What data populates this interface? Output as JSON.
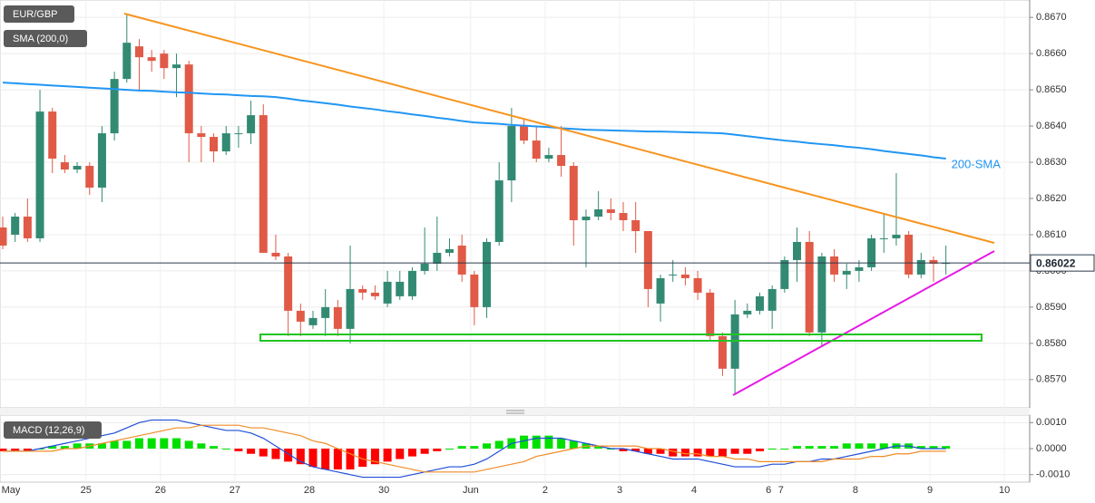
{
  "chart_data": [
    {
      "type": "candlestick",
      "title": "EUR/GBP",
      "categories": [
        "May",
        null,
        null,
        null,
        null,
        null,
        null,
        "25",
        null,
        null,
        null,
        null,
        null,
        "26",
        null,
        null,
        null,
        null,
        null,
        "27",
        null,
        null,
        null,
        null,
        null,
        "28",
        null,
        null,
        null,
        null,
        null,
        "30",
        null,
        null,
        null,
        null,
        null,
        null,
        "Jun",
        null,
        null,
        null,
        null,
        null,
        "2",
        null,
        null,
        null,
        null,
        null,
        "3",
        null,
        null,
        null,
        null,
        null,
        "4",
        null,
        null,
        null,
        null,
        null,
        "6",
        "7",
        null,
        null,
        null,
        null,
        null,
        "8",
        null,
        null,
        null,
        null,
        null,
        "9",
        null,
        null,
        null,
        null,
        null,
        "10"
      ],
      "open": [
        0.8612,
        0.861,
        0.8615,
        0.8609,
        0.8644,
        0.863,
        0.8628,
        0.8629,
        0.8623,
        0.8638,
        0.8653,
        0.8662,
        0.8659,
        0.866,
        0.8656,
        0.8657,
        0.8638,
        0.8637,
        0.8633,
        0.8638,
        0.8638,
        0.8643,
        0.8605,
        0.8604,
        0.8589,
        0.8585,
        0.8587,
        0.859,
        0.8584,
        0.8595,
        0.8594,
        0.8591,
        0.8593,
        0.8593,
        0.86,
        0.8602,
        0.8605,
        0.8607,
        0.8599,
        0.859,
        0.8608,
        0.8625,
        0.864,
        0.8636,
        0.8631,
        0.8632,
        0.8629,
        0.8614,
        0.8615,
        0.8617,
        0.8616,
        0.8614,
        0.8611,
        0.8591,
        0.8599,
        0.8599,
        0.8598,
        0.8594,
        0.8582,
        0.8573,
        0.8588,
        0.8589,
        0.8589,
        0.8595,
        0.8603,
        0.8608,
        0.8583,
        0.8604,
        0.8599,
        0.86,
        0.8601,
        0.8609,
        0.8609,
        0.861,
        0.8599,
        0.8603,
        0.8602,
        null,
        null,
        null,
        null,
        null
      ],
      "high": [
        0.8615,
        0.8616,
        0.862,
        0.865,
        0.8645,
        0.8632,
        0.863,
        0.863,
        0.864,
        0.8655,
        0.8671,
        0.8664,
        0.8661,
        0.8661,
        0.866,
        0.8658,
        0.864,
        0.8638,
        0.864,
        0.864,
        0.8647,
        0.8646,
        0.861,
        0.8605,
        0.8591,
        0.8589,
        0.8595,
        0.8592,
        0.8607,
        0.8596,
        0.8596,
        0.86,
        0.86,
        0.8601,
        0.8612,
        0.8615,
        0.8609,
        0.861,
        0.86,
        0.8609,
        0.863,
        0.8645,
        0.8642,
        0.864,
        0.8634,
        0.864,
        0.863,
        0.8617,
        0.8622,
        0.862,
        0.8619,
        0.8619,
        0.8611,
        0.8599,
        0.8603,
        0.8601,
        0.86,
        0.8595,
        0.8583,
        0.8592,
        0.8591,
        0.8594,
        0.8596,
        0.8604,
        0.8612,
        0.8611,
        0.8605,
        0.8606,
        0.8602,
        0.8603,
        0.861,
        0.8616,
        0.8627,
        0.8611,
        0.8605,
        0.8604,
        0.8607,
        null,
        null,
        null,
        null,
        null
      ],
      "low": [
        0.8606,
        0.8608,
        0.8608,
        0.8608,
        0.8627,
        0.8627,
        0.8627,
        0.8621,
        0.8619,
        0.8636,
        0.8652,
        0.865,
        0.8655,
        0.8653,
        0.8648,
        0.863,
        0.863,
        0.863,
        0.8632,
        0.8634,
        0.8635,
        0.8605,
        0.8603,
        0.8582,
        0.8582,
        0.8584,
        0.8582,
        0.8582,
        0.858,
        0.8592,
        0.8592,
        0.859,
        0.8592,
        0.8592,
        0.8599,
        0.86,
        0.8604,
        0.8597,
        0.8585,
        0.8587,
        0.8607,
        0.8619,
        0.8635,
        0.863,
        0.863,
        0.8626,
        0.8607,
        0.8601,
        0.8614,
        0.8614,
        0.8611,
        0.8605,
        0.859,
        0.8586,
        0.8597,
        0.8596,
        0.8592,
        0.8581,
        0.8571,
        0.8566,
        0.8587,
        0.8588,
        0.8584,
        0.8594,
        0.8597,
        0.8582,
        0.8579,
        0.8597,
        0.8595,
        0.8597,
        0.86,
        0.8605,
        0.8607,
        0.8598,
        0.8598,
        0.8597,
        0.8599,
        null,
        null,
        null,
        null,
        null
      ],
      "close": [
        0.8607,
        0.8615,
        0.8609,
        0.8644,
        0.8631,
        0.8628,
        0.8629,
        0.8623,
        0.8638,
        0.8653,
        0.8663,
        0.8659,
        0.8658,
        0.8656,
        0.8657,
        0.8638,
        0.8637,
        0.8633,
        0.8638,
        0.8638,
        0.8643,
        0.8605,
        0.8604,
        0.8589,
        0.8586,
        0.8587,
        0.859,
        0.8584,
        0.8595,
        0.8594,
        0.8593,
        0.8597,
        0.8597,
        0.86,
        0.8602,
        0.8605,
        0.8606,
        0.8599,
        0.859,
        0.8608,
        0.8625,
        0.864,
        0.8636,
        0.8631,
        0.8632,
        0.8629,
        0.8614,
        0.8615,
        0.8617,
        0.8616,
        0.8614,
        0.8611,
        0.8595,
        0.8598,
        0.8599,
        0.8598,
        0.8594,
        0.8582,
        0.8573,
        0.8588,
        0.8589,
        0.8593,
        0.8595,
        0.8603,
        0.8608,
        0.8583,
        0.8604,
        0.8599,
        0.86,
        0.8601,
        0.8609,
        0.8609,
        0.861,
        0.8599,
        0.8603,
        0.8602,
        0.86022,
        null,
        null,
        null,
        null,
        null
      ],
      "up_color": "#338a73",
      "down_color": "#e05a47",
      "series": [
        {
          "name": "SMA (200,0)",
          "color": "#2196f3",
          "values": [
            0.8652,
            0.86518,
            0.86516,
            0.86514,
            0.86512,
            0.8651,
            0.86508,
            0.86506,
            0.86504,
            0.86502,
            0.865,
            0.86498,
            0.86497,
            0.86495,
            0.86493,
            0.86492,
            0.8649,
            0.86488,
            0.86487,
            0.86485,
            0.86483,
            0.86482,
            0.8648,
            0.86476,
            0.86471,
            0.86467,
            0.86463,
            0.86459,
            0.86454,
            0.8645,
            0.86446,
            0.86441,
            0.86437,
            0.86432,
            0.86428,
            0.86423,
            0.86419,
            0.86414,
            0.8641,
            0.86408,
            0.86406,
            0.86403,
            0.86401,
            0.86399,
            0.86397,
            0.86394,
            0.86392,
            0.8639,
            0.86389,
            0.86388,
            0.86387,
            0.86386,
            0.86385,
            0.86385,
            0.86384,
            0.86383,
            0.86382,
            0.86381,
            0.8638,
            0.86376,
            0.86372,
            0.86368,
            0.86364,
            0.8636,
            0.86357,
            0.86353,
            0.8635,
            0.86347,
            0.86343,
            0.8634,
            0.86336,
            0.86331,
            0.86327,
            0.86323,
            0.86319,
            0.86314,
            0.8631,
            null,
            null,
            null,
            null,
            null
          ]
        }
      ],
      "annotation": "200-SMA",
      "last_price": 0.86022,
      "ylim": [
        0.85622,
        0.86748
      ],
      "yticks": [
        {
          "value": 0.857,
          "label": "0.8570"
        },
        {
          "value": 0.858,
          "label": "0.8580"
        },
        {
          "value": 0.859,
          "label": "0.8590"
        },
        {
          "value": 0.86,
          "label": "0.8600"
        },
        {
          "value": 0.861,
          "label": "0.8610"
        },
        {
          "value": 0.862,
          "label": "0.8620"
        },
        {
          "value": 0.863,
          "label": "0.8630"
        },
        {
          "value": 0.864,
          "label": "0.8640"
        },
        {
          "value": 0.865,
          "label": "0.8650"
        },
        {
          "value": 0.866,
          "label": "0.8660"
        },
        {
          "value": 0.867,
          "label": "0.8670"
        }
      ],
      "grid": true
    },
    {
      "type": "macd",
      "title": "MACD (12,26,9)",
      "series": [
        {
          "color": "#1f4ed8",
          "values": [
            -0.0001,
            -0.0001,
            -0.0001,
            0,
            0.0001,
            0.0002,
            0.0003,
            0.0004,
            0.0005,
            0.0006,
            0.0008,
            0.001,
            0.0011,
            0.0011,
            0.0011,
            0.001,
            0.0009,
            0.0008,
            0.0007,
            0.0007,
            0.0006,
            0.0004,
            0.0001,
            -0.0002,
            -0.0005,
            -0.0007,
            -0.0008,
            -0.0009,
            -0.001,
            -0.0011,
            -0.0011,
            -0.0011,
            -0.0011,
            -0.001,
            -0.0009,
            -0.0008,
            -0.0007,
            -0.0007,
            -0.0006,
            -0.0004,
            -0.0001,
            0.0002,
            0.0003,
            0.0004,
            0.0004,
            0.0004,
            0.0003,
            0.0002,
            0.0001,
            0,
            0,
            -0.0001,
            -0.0002,
            -0.0003,
            -0.0004,
            -0.0004,
            -0.0004,
            -0.0005,
            -0.0006,
            -0.0007,
            -0.0007,
            -0.0007,
            -0.0006,
            -0.0006,
            -0.0005,
            -0.0005,
            -0.0004,
            -0.0004,
            -0.0003,
            -0.0002,
            -0.0001,
            0,
            0.0001,
            0.0001,
            0,
            0,
            0
          ]
        },
        {
          "color": "#f08c28",
          "values": [
            -0.0001,
            -0.0001,
            -0.0001,
            -0.0001,
            -0.0001,
            0,
            0,
            0.0001,
            0.0002,
            0.0003,
            0.0004,
            0.0005,
            0.0006,
            0.0007,
            0.0008,
            0.0008,
            0.0009,
            0.0009,
            0.0009,
            0.0009,
            0.0008,
            0.0008,
            0.0007,
            0.0006,
            0.0005,
            0.0003,
            0.0002,
            0,
            -0.0002,
            -0.0004,
            -0.0005,
            -0.0006,
            -0.0007,
            -0.0008,
            -0.0009,
            -0.0009,
            -0.0009,
            -0.0009,
            -0.0009,
            -0.0008,
            -0.0007,
            -0.0006,
            -0.0005,
            -0.0003,
            -0.0002,
            -0.0001,
            0,
            0.0001,
            0.0001,
            0.0001,
            0.0001,
            0.0001,
            0,
            0,
            -0.0001,
            -0.0002,
            -0.0002,
            -0.0003,
            -0.0003,
            -0.0004,
            -0.0004,
            -0.0005,
            -0.0005,
            -0.0005,
            -0.0005,
            -0.0005,
            -0.0005,
            -0.0004,
            -0.0004,
            -0.0004,
            -0.0003,
            -0.0003,
            -0.0002,
            -0.0002,
            -0.0001,
            -0.0001,
            -0.0001
          ]
        }
      ],
      "histogram": {
        "up_color": "#00e000",
        "down_color": "#ff0000",
        "values": [
          -0.0001,
          -0.0001,
          -0.0001,
          0,
          0.0001,
          0.0001,
          0.0002,
          0.0002,
          0.0002,
          0.0003,
          0.0003,
          0.0004,
          0.0004,
          0.0004,
          0.0004,
          0.0003,
          0.0002,
          0.0001,
          0,
          -0.0001,
          -0.0002,
          -0.0003,
          -0.0004,
          -0.0005,
          -0.0006,
          -0.0007,
          -0.0008,
          -0.0008,
          -0.0008,
          -0.0007,
          -0.0006,
          -0.0005,
          -0.0004,
          -0.0003,
          -0.0002,
          -0.0001,
          0,
          0.0001,
          0.0001,
          0.0002,
          0.0003,
          0.0004,
          0.0005,
          0.0005,
          0.0005,
          0.0004,
          0.0003,
          0.0002,
          0.0001,
          0,
          -0.0001,
          -0.0001,
          -0.0002,
          -0.0002,
          -0.0003,
          -0.0003,
          -0.0003,
          -0.0003,
          -0.0003,
          -0.0002,
          -0.0002,
          -0.0001,
          0,
          0,
          0.0001,
          0.0001,
          0.0001,
          0.0001,
          0.0002,
          0.0002,
          0.0002,
          0.0002,
          0.0002,
          0.0002,
          0.0001,
          0.0001,
          0.0001
        ]
      },
      "ylim": [
        -0.00129,
        0.00129
      ],
      "yticks": [
        {
          "value": -0.001,
          "label": "-0.0010"
        },
        {
          "value": 0,
          "label": "0.0000"
        },
        {
          "value": 0.001,
          "label": "0.0010"
        }
      ],
      "grid": true
    }
  ]
}
